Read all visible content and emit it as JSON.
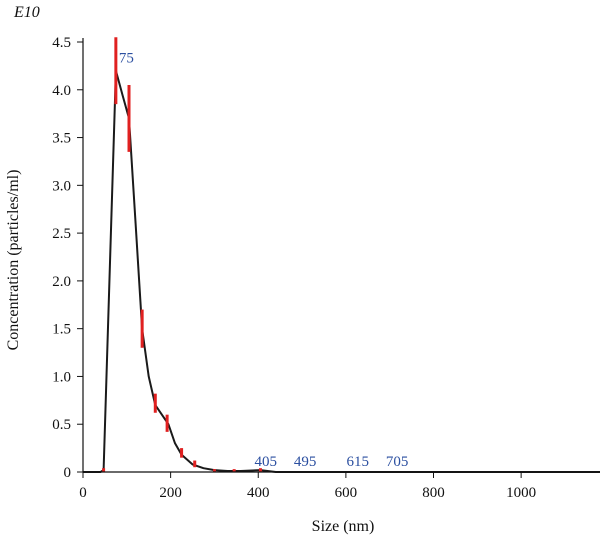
{
  "chart_data": {
    "type": "line",
    "xlabel": "Size (nm)",
    "ylabel": "Concentration (particles/ml)",
    "y_exponent_label": "E10",
    "xlim": [
      0,
      1180
    ],
    "ylim": [
      0,
      4.5
    ],
    "x_ticks": [
      {
        "value": 0,
        "label": "0"
      },
      {
        "value": 200,
        "label": "200"
      },
      {
        "value": 400,
        "label": "400"
      },
      {
        "value": 600,
        "label": "600"
      },
      {
        "value": 800,
        "label": "800"
      },
      {
        "value": 1000,
        "label": "1000"
      }
    ],
    "y_ticks": [
      {
        "value": 0,
        "label": "0"
      },
      {
        "value": 0.5,
        "label": "0.5"
      },
      {
        "value": 1.0,
        "label": "1.0"
      },
      {
        "value": 1.5,
        "label": "1.5"
      },
      {
        "value": 2.0,
        "label": "2.0"
      },
      {
        "value": 2.5,
        "label": "2.5"
      },
      {
        "value": 3.0,
        "label": "3.0"
      },
      {
        "value": 3.5,
        "label": "3.5"
      },
      {
        "value": 4.0,
        "label": "4.0"
      },
      {
        "value": 4.5,
        "label": "4.5"
      }
    ],
    "grid": false,
    "series": [
      {
        "points": [
          {
            "x": 0,
            "y": 0.0
          },
          {
            "x": 40,
            "y": 0.0
          },
          {
            "x": 47,
            "y": 0.02
          },
          {
            "x": 75,
            "y": 4.2
          },
          {
            "x": 90,
            "y": 3.95
          },
          {
            "x": 105,
            "y": 3.7
          },
          {
            "x": 120,
            "y": 2.6
          },
          {
            "x": 135,
            "y": 1.5
          },
          {
            "x": 150,
            "y": 1.0
          },
          {
            "x": 165,
            "y": 0.7
          },
          {
            "x": 180,
            "y": 0.6
          },
          {
            "x": 195,
            "y": 0.5
          },
          {
            "x": 210,
            "y": 0.3
          },
          {
            "x": 225,
            "y": 0.18
          },
          {
            "x": 250,
            "y": 0.08
          },
          {
            "x": 275,
            "y": 0.04
          },
          {
            "x": 300,
            "y": 0.02
          },
          {
            "x": 330,
            "y": 0.01
          },
          {
            "x": 360,
            "y": 0.01
          },
          {
            "x": 405,
            "y": 0.02
          },
          {
            "x": 440,
            "y": 0.0
          },
          {
            "x": 600,
            "y": 0.0
          },
          {
            "x": 1180,
            "y": 0.0
          }
        ],
        "error_bars": [
          {
            "x": 47,
            "low": 0.0,
            "high": 0.04
          },
          {
            "x": 75,
            "low": 3.85,
            "high": 4.55
          },
          {
            "x": 105,
            "low": 3.35,
            "high": 4.05
          },
          {
            "x": 135,
            "low": 1.3,
            "high": 1.7
          },
          {
            "x": 165,
            "low": 0.62,
            "high": 0.82
          },
          {
            "x": 192,
            "low": 0.42,
            "high": 0.6
          },
          {
            "x": 225,
            "low": 0.15,
            "high": 0.25
          },
          {
            "x": 255,
            "low": 0.05,
            "high": 0.12
          },
          {
            "x": 300,
            "low": 0.0,
            "high": 0.03
          },
          {
            "x": 345,
            "low": 0.0,
            "high": 0.03
          },
          {
            "x": 405,
            "low": 0.0,
            "high": 0.04
          }
        ]
      }
    ],
    "annotations": [
      {
        "text": "75",
        "x": 75,
        "y": 4.2
      },
      {
        "text": "405",
        "x": 405,
        "y": 0.02
      },
      {
        "text": "495",
        "x": 495,
        "y": 0.0
      },
      {
        "text": "615",
        "x": 615,
        "y": 0.0
      },
      {
        "text": "705",
        "x": 705,
        "y": 0.0
      }
    ],
    "colors": {
      "line": "#1a1a1a",
      "error_bar": "#e02020",
      "annotation": "#2b4fa0",
      "axis": "#111111"
    }
  }
}
